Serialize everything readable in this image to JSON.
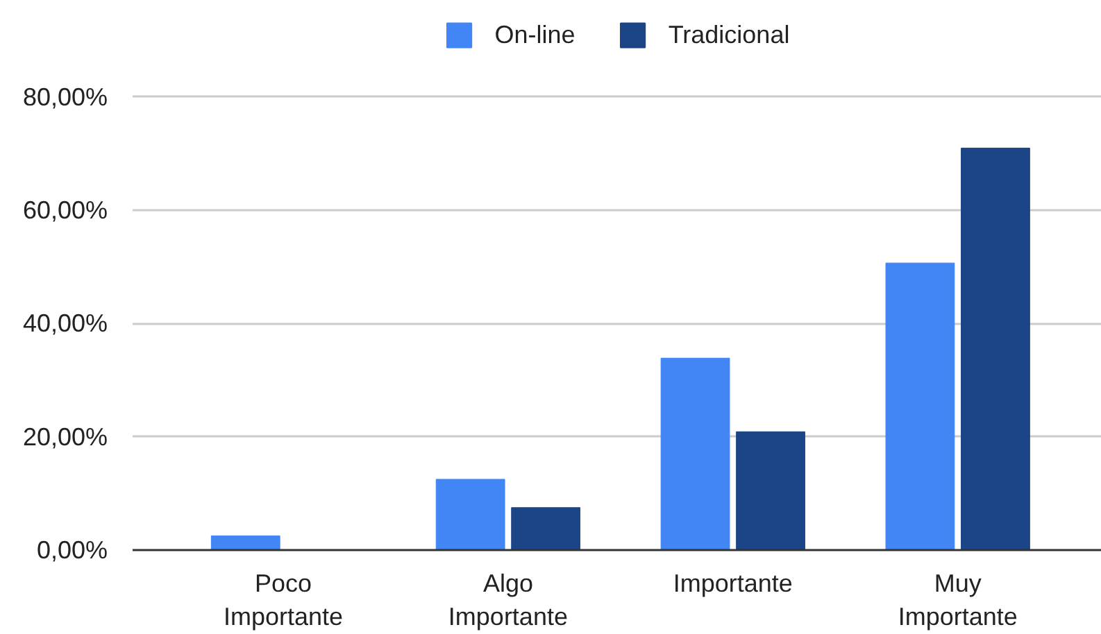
{
  "chart_data": {
    "type": "bar",
    "categories": [
      "Poco Importante",
      "Algo Importante",
      "Importante",
      "Muy Importante"
    ],
    "series": [
      {
        "name": "On-line",
        "color": "#4285f4",
        "values": [
          2.5,
          12.5,
          33.9,
          50.7
        ]
      },
      {
        "name": "Tradicional",
        "color": "#1c4587",
        "values": [
          null,
          7.5,
          20.9,
          71.0
        ]
      }
    ],
    "ylim": [
      0,
      80
    ],
    "yticks": [
      {
        "value": 0,
        "label": "0,00%"
      },
      {
        "value": 20,
        "label": "20,00%"
      },
      {
        "value": 40,
        "label": "40,00%"
      },
      {
        "value": 60,
        "label": "60,00%"
      },
      {
        "value": 80,
        "label": "80,00%"
      }
    ],
    "grid": "y",
    "legend": "top"
  }
}
